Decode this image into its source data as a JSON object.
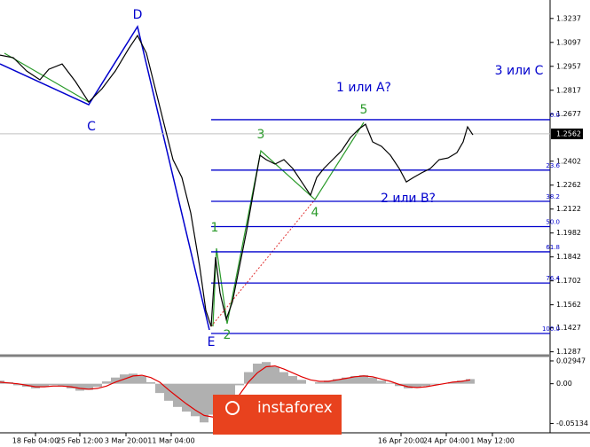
{
  "chart_data": [
    {
      "type": "line",
      "series": [
        {
          "color": "#000000",
          "x": [
            0,
            15,
            30,
            45,
            55,
            70,
            85,
            100,
            115,
            130,
            145,
            155,
            165,
            175,
            185,
            195,
            205,
            215,
            225,
            232,
            238,
            243,
            248,
            255,
            262,
            270,
            278,
            285,
            293,
            300,
            310,
            320,
            330,
            340,
            350,
            357,
            365,
            375,
            385,
            395,
            405,
            412,
            420,
            430,
            440,
            450,
            458,
            466,
            475,
            485,
            495,
            505,
            515,
            522,
            527,
            533
          ],
          "values": [
            1.3023,
            1.3008,
            1.293,
            1.2878,
            1.294,
            1.2971,
            1.2868,
            1.2748,
            1.2826,
            1.293,
            1.306,
            1.3137,
            1.3034,
            1.2826,
            1.2618,
            1.2411,
            1.2307,
            1.2099,
            1.1788,
            1.1529,
            1.1435,
            1.184,
            1.1632,
            1.1477,
            1.158,
            1.1788,
            1.1996,
            1.2203,
            1.2437,
            1.2411,
            1.2385,
            1.2411,
            1.2359,
            1.2281,
            1.2203,
            1.2307,
            1.2359,
            1.2411,
            1.2463,
            1.2541,
            1.2592,
            1.2618,
            1.2515,
            1.2489,
            1.2437,
            1.2359,
            1.2281,
            1.2307,
            1.2333,
            1.2359,
            1.2411,
            1.2421,
            1.2452,
            1.2515,
            1.2603,
            1.2556
          ]
        }
      ],
      "xlim": [
        0,
        620
      ],
      "ylim": [
        1.128,
        1.3345
      ],
      "yticks": [
        1.3237,
        1.3097,
        1.2957,
        1.2817,
        1.2677,
        1.2402,
        1.2262,
        1.2122,
        1.1982,
        1.1842,
        1.1702,
        1.1562,
        1.1427,
        1.1287
      ],
      "last_price": 1.2562,
      "fib_high": 1.2645,
      "fib_low": 1.1394,
      "fib_color": "#0000cd",
      "fib_levels": [
        {
          "value": 0,
          "label": "0.0"
        },
        23.6,
        38.2,
        {
          "value": 50,
          "label": "50.0"
        },
        61.8,
        76.4,
        {
          "value": 100,
          "label": "100.0"
        }
      ],
      "wave_labels": [
        "D",
        "C",
        "E",
        "1",
        "2",
        "3",
        "4",
        "5",
        "1 или A?",
        "2 или B?",
        "3 или C"
      ],
      "xticks": [
        {
          "value": 40,
          "label": "18 Feb 04:00"
        },
        {
          "value": 90,
          "label": "25 Feb 12:00"
        },
        {
          "value": 142,
          "label": "3 Mar 20:00"
        },
        {
          "value": 193,
          "label": "11 Mar 04:00"
        },
        {
          "value": 452,
          "label": "16 Apr 20:00"
        },
        {
          "value": 503,
          "label": "24 Apr 04:00"
        },
        {
          "value": 555,
          "label": "1 May 12:00"
        }
      ],
      "watermark": "instaforex"
    },
    {
      "type": "bar",
      "ylim": [
        -0.0623,
        0.034
      ],
      "yticks": [
        0.02947,
        {
          "value": 0,
          "label": "0.00"
        },
        -0.05134
      ],
      "x": [
        0,
        10,
        20,
        30,
        40,
        50,
        60,
        70,
        80,
        90,
        100,
        110,
        120,
        130,
        140,
        150,
        160,
        170,
        180,
        190,
        200,
        210,
        220,
        230,
        240,
        250,
        260,
        270,
        280,
        290,
        300,
        310,
        320,
        330,
        340,
        350,
        360,
        370,
        380,
        390,
        400,
        410,
        420,
        430,
        440,
        450,
        460,
        470,
        480,
        490,
        500,
        510,
        520,
        530
      ],
      "series": [
        {
          "color": "#b0b0b0",
          "values": [
            0.004,
            0.002,
            -0.002,
            -0.004,
            -0.006,
            -0.004,
            -0.002,
            -0.003,
            -0.006,
            -0.009,
            -0.008,
            -0.004,
            0.003,
            0.008,
            0.012,
            0.013,
            0.01,
            0.002,
            -0.012,
            -0.022,
            -0.03,
            -0.036,
            -0.042,
            -0.05,
            -0.04,
            -0.03,
            -0.018,
            -0.002,
            0.015,
            0.026,
            0.028,
            0.022,
            0.015,
            0.01,
            0.005,
            0,
            0.002,
            0.004,
            0.006,
            0.008,
            0.01,
            0.011,
            0.008,
            0.004,
            0.001,
            -0.003,
            -0.006,
            -0.005,
            -0.003,
            -0.001,
            0,
            0.002,
            0.004,
            0.006
          ]
        },
        {
          "color": "#e00000",
          "values": [
            0.002,
            0.001,
            0,
            -0.002,
            -0.004,
            -0.004,
            -0.003,
            -0.003,
            -0.004,
            -0.006,
            -0.007,
            -0.006,
            -0.003,
            0.002,
            0.006,
            0.01,
            0.011,
            0.008,
            0.002,
            -0.008,
            -0.017,
            -0.026,
            -0.034,
            -0.041,
            -0.043,
            -0.038,
            -0.028,
            -0.014,
            0.002,
            0.014,
            0.022,
            0.023,
            0.019,
            0.014,
            0.009,
            0.005,
            0.003,
            0.003,
            0.005,
            0.007,
            0.009,
            0.01,
            0.009,
            0.006,
            0.003,
            -0.001,
            -0.004,
            -0.005,
            -0.004,
            -0.002,
            0,
            0.002,
            0.003,
            0.005
          ]
        }
      ]
    }
  ]
}
